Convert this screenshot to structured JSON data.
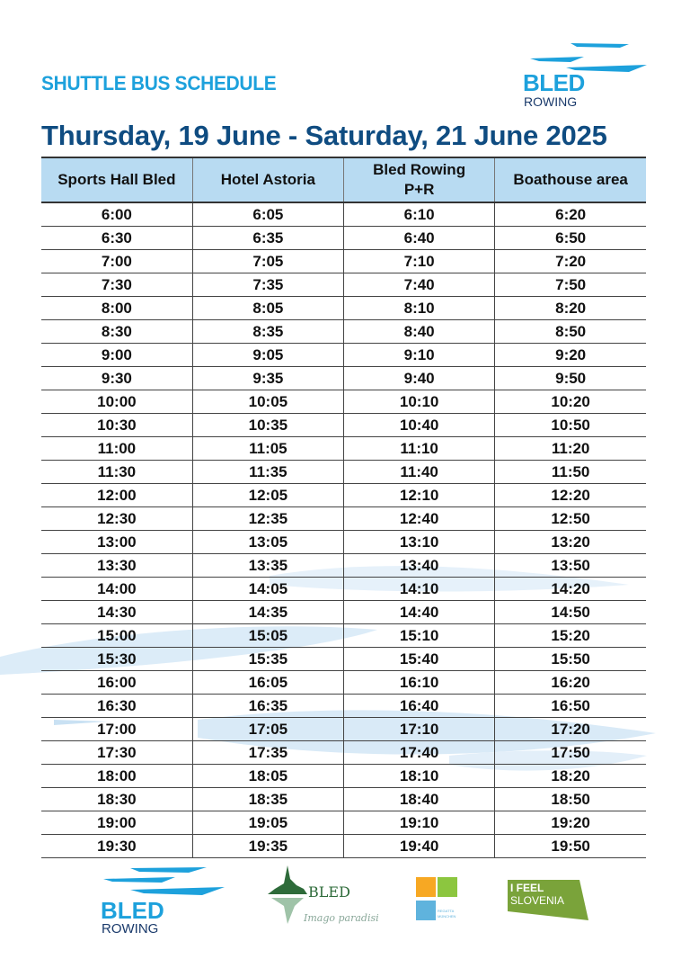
{
  "header": {
    "subtitle": "SHUTTLE BUS SCHEDULE",
    "title": "Thursday, 19 June - Saturday, 21 June 2025",
    "logo": {
      "line1": "BLED",
      "line2": "ROWING"
    }
  },
  "colors": {
    "accent": "#1da1dc",
    "title": "#0f4c81",
    "header_bg": "#b8dbf2"
  },
  "table": {
    "columns": [
      "Sports Hall Bled",
      "Hotel Astoria",
      "Bled Rowing P+R",
      "Boathouse area"
    ],
    "column_lines": [
      [
        "Sports Hall Bled"
      ],
      [
        "Hotel Astoria"
      ],
      [
        "Bled Rowing",
        "P+R"
      ],
      [
        "Boathouse area"
      ]
    ],
    "rows": [
      [
        "6:00",
        "6:05",
        "6:10",
        "6:20"
      ],
      [
        "6:30",
        "6:35",
        "6:40",
        "6:50"
      ],
      [
        "7:00",
        "7:05",
        "7:10",
        "7:20"
      ],
      [
        "7:30",
        "7:35",
        "7:40",
        "7:50"
      ],
      [
        "8:00",
        "8:05",
        "8:10",
        "8:20"
      ],
      [
        "8:30",
        "8:35",
        "8:40",
        "8:50"
      ],
      [
        "9:00",
        "9:05",
        "9:10",
        "9:20"
      ],
      [
        "9:30",
        "9:35",
        "9:40",
        "9:50"
      ],
      [
        "10:00",
        "10:05",
        "10:10",
        "10:20"
      ],
      [
        "10:30",
        "10:35",
        "10:40",
        "10:50"
      ],
      [
        "11:00",
        "11:05",
        "11:10",
        "11:20"
      ],
      [
        "11:30",
        "11:35",
        "11:40",
        "11:50"
      ],
      [
        "12:00",
        "12:05",
        "12:10",
        "12:20"
      ],
      [
        "12:30",
        "12:35",
        "12:40",
        "12:50"
      ],
      [
        "13:00",
        "13:05",
        "13:10",
        "13:20"
      ],
      [
        "13:30",
        "13:35",
        "13:40",
        "13:50"
      ],
      [
        "14:00",
        "14:05",
        "14:10",
        "14:20"
      ],
      [
        "14:30",
        "14:35",
        "14:40",
        "14:50"
      ],
      [
        "15:00",
        "15:05",
        "15:10",
        "15:20"
      ],
      [
        "15:30",
        "15:35",
        "15:40",
        "15:50"
      ],
      [
        "16:00",
        "16:05",
        "16:10",
        "16:20"
      ],
      [
        "16:30",
        "16:35",
        "16:40",
        "16:50"
      ],
      [
        "17:00",
        "17:05",
        "17:10",
        "17:20"
      ],
      [
        "17:30",
        "17:35",
        "17:40",
        "17:50"
      ],
      [
        "18:00",
        "18:05",
        "18:10",
        "18:20"
      ],
      [
        "18:30",
        "18:35",
        "18:40",
        "18:50"
      ],
      [
        "19:00",
        "19:05",
        "19:10",
        "19:20"
      ],
      [
        "19:30",
        "19:35",
        "19:40",
        "19:50"
      ]
    ]
  },
  "footer": {
    "logos": [
      {
        "name": "bled-rowing",
        "line1": "BLED",
        "line2": "ROWING"
      },
      {
        "name": "bled-imago-paradisi",
        "line1": "BLED",
        "tagline": "Imago paradisi"
      },
      {
        "name": "regatta-munchen",
        "line1": "REGATTA",
        "line2": "MÜNCHEN"
      },
      {
        "name": "i-feel-slovenia",
        "line1": "I FEEL",
        "line2": "SLOVENIA"
      }
    ]
  }
}
